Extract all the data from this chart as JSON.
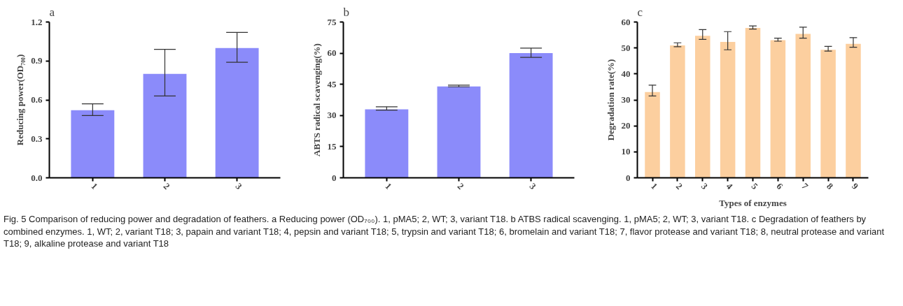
{
  "chart_data": [
    {
      "type": "bar",
      "title": "a",
      "ylabel": "Reducing power(OD₇₀₀)",
      "categories": [
        "1",
        "2",
        "3"
      ],
      "values": [
        0.52,
        0.8,
        1.0
      ],
      "errors": [
        [
          0.48,
          0.57
        ],
        [
          0.63,
          0.99
        ],
        [
          0.89,
          1.12
        ]
      ],
      "color": "#8b8bfa",
      "ylim": [
        0,
        1.2
      ],
      "yticks": [
        {
          "value": 0,
          "label": "0.0"
        },
        0.3,
        0.6,
        0.9,
        1.2
      ],
      "grid": false
    },
    {
      "type": "bar",
      "title": "b",
      "ylabel": "ABTS radical scavenging(%)",
      "categories": [
        "1",
        "2",
        "3"
      ],
      "values": [
        33,
        44,
        60
      ],
      "errors": [
        [
          32.6,
          34.2
        ],
        [
          43.8,
          44.6
        ],
        [
          58,
          62.4
        ]
      ],
      "color": "#8b8bfa",
      "ylim": [
        0,
        75
      ],
      "yticks": [
        0,
        15,
        30,
        45,
        60,
        75
      ],
      "grid": false
    },
    {
      "type": "bar",
      "title": "c",
      "xlabel": "Types of enzymes",
      "ylabel": "Degradation rate(%)",
      "categories": [
        "1",
        "2",
        "3",
        "4",
        "5",
        "6",
        "7",
        "8",
        "9"
      ],
      "values": [
        33,
        51,
        54.7,
        52.3,
        57.7,
        53,
        55.4,
        49.3,
        51.6
      ],
      "errors": [
        [
          31.5,
          35.7
        ],
        [
          50.5,
          52
        ],
        [
          53.3,
          57.1
        ],
        [
          49.3,
          56.3
        ],
        [
          57.3,
          58.5
        ],
        [
          52.6,
          53.8
        ],
        [
          53.8,
          58
        ],
        [
          48.8,
          50.6
        ],
        [
          50.3,
          54
        ]
      ],
      "color": "#fccf9f",
      "ylim": [
        0,
        60
      ],
      "yticks": [
        0,
        10,
        20,
        30,
        40,
        50,
        60
      ],
      "grid": false,
      "annotations": [
        "Fig. 5  Comparison of reducing power and degradation of feathers. a Reducing power (OD₇₀₀). 1, pMA5; 2, WT; 3, variant T18. b ATBS radical scavenging. 1, pMA5; 2, WT; 3, variant T18. c Degradation of feathers by combined enzymes. 1, WT; 2, variant T18; 3, papain and variant T18; 4, pepsin and variant T18; 5, trypsin and variant T18; 6, bromelain and variant T18; 7, flavor protease and variant T18; 8, neutral protease and variant T18; 9, alkaline protease and variant T18"
      ]
    }
  ]
}
